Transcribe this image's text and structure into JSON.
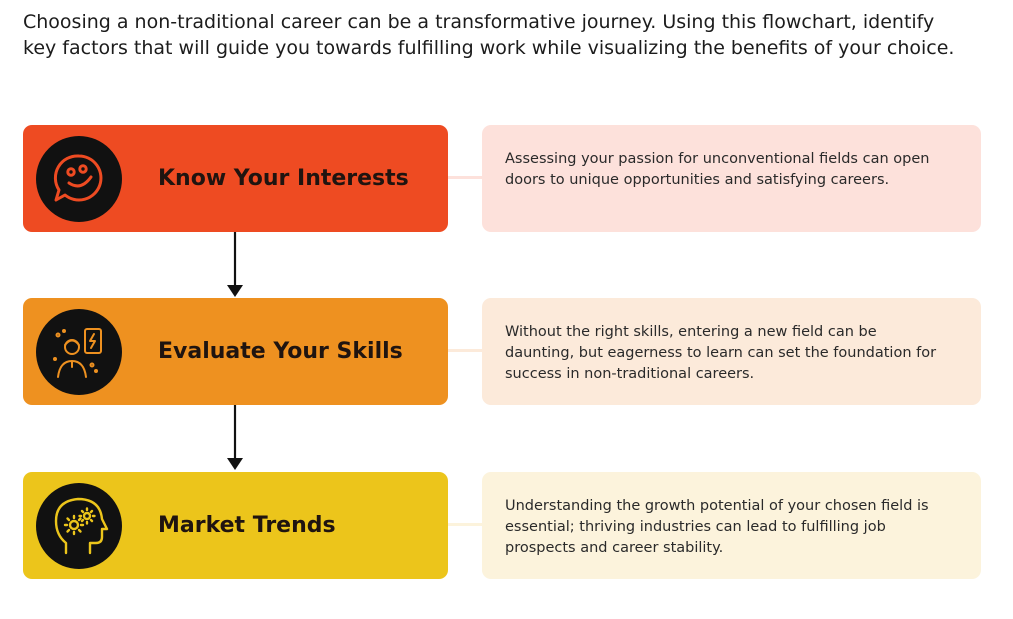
{
  "intro_text": "Choosing a non-traditional career can be a transformative journey. Using this flowchart, identify key factors that will guide you towards fulfilling work while visualizing the benefits of your choice.",
  "steps": [
    {
      "title": "Know Your Interests",
      "description": "Assessing your passion for unconventional fields can open doors to unique opportunities and satisfying careers.",
      "icon": "smiley-chat-icon",
      "color": "#EE4B22",
      "desc_bg": "#FDE1DB"
    },
    {
      "title": "Evaluate Your Skills",
      "description": "Without the right skills, entering a new field can be daunting, but eagerness to learn can set the foundation for success in non-traditional careers.",
      "icon": "person-idea-icon",
      "color": "#EE9120",
      "desc_bg": "#FCEADA"
    },
    {
      "title": "Market Trends",
      "description": "Understanding the growth potential of your chosen field is essential; thriving industries can lead to fulfilling job prospects and career stability.",
      "icon": "head-gears-icon",
      "color": "#ECC51B",
      "desc_bg": "#FCF3DC"
    }
  ]
}
